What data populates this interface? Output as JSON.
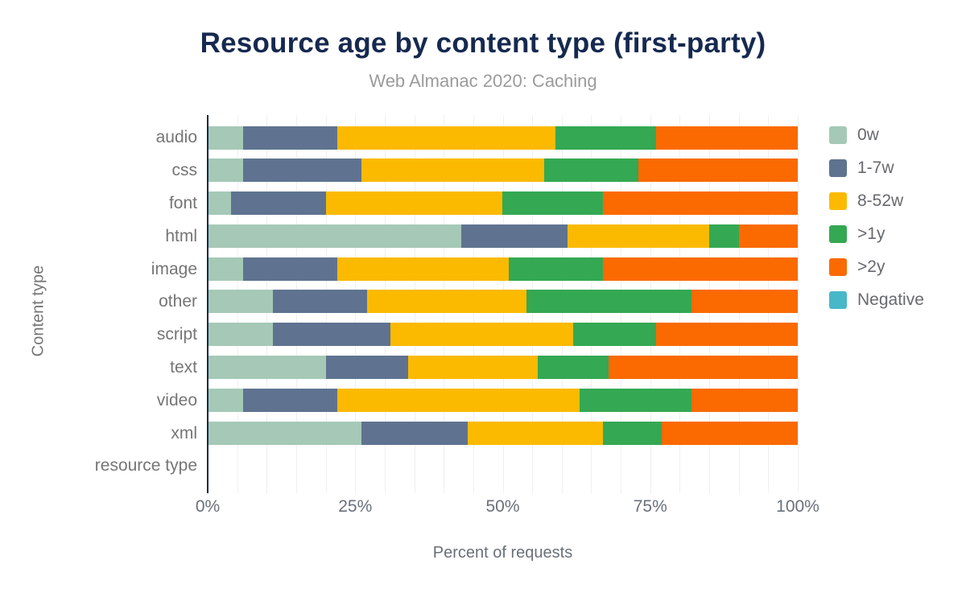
{
  "header": {
    "title": "Resource age by content type (first-party)",
    "subtitle": "Web Almanac 2020: Caching"
  },
  "chart_data": {
    "type": "bar",
    "stacked": true,
    "orientation": "horizontal",
    "title": "Resource age by content type (first-party)",
    "subtitle": "Web Almanac 2020: Caching",
    "xlabel": "Percent of requests",
    "ylabel": "Content type",
    "xlim": [
      0,
      100
    ],
    "x_ticks": [
      {
        "value": 0,
        "label": "0%"
      },
      {
        "value": 25,
        "label": "25%"
      },
      {
        "value": 50,
        "label": "50%"
      },
      {
        "value": 75,
        "label": "75%"
      },
      {
        "value": 100,
        "label": "100%"
      }
    ],
    "grid": "vertical minor gridlines every 5%",
    "legend_position": "right",
    "categories": [
      "audio",
      "css",
      "font",
      "html",
      "image",
      "other",
      "script",
      "text",
      "video",
      "xml",
      "resource type"
    ],
    "series": [
      {
        "name": "0w",
        "color": "#a5c9b6",
        "values": [
          6,
          6,
          4,
          43,
          6,
          11,
          11,
          20,
          6,
          26,
          0
        ]
      },
      {
        "name": "1-7w",
        "color": "#5f7390",
        "values": [
          16,
          20,
          16,
          18,
          16,
          16,
          20,
          14,
          16,
          18,
          0
        ]
      },
      {
        "name": "8-52w",
        "color": "#fbba00",
        "values": [
          37,
          31,
          30,
          24,
          29,
          27,
          31,
          22,
          41,
          23,
          0
        ]
      },
      {
        "name": ">1y",
        "color": "#34a853",
        "values": [
          17,
          16,
          17,
          5,
          16,
          28,
          14,
          12,
          19,
          10,
          0
        ]
      },
      {
        "name": ">2y",
        "color": "#fa6a01",
        "values": [
          24,
          27,
          33,
          10,
          33,
          18,
          24,
          32,
          18,
          23,
          0
        ]
      },
      {
        "name": "Negative",
        "color": "#48b8c8",
        "values": [
          0,
          0,
          0,
          0,
          0,
          0,
          0,
          0,
          0,
          0,
          0
        ]
      }
    ]
  },
  "colors": {
    "title": "#16294f",
    "subtitle": "#9b9b9b",
    "axis_line": "#16294f",
    "gridline": "#f0f0f2",
    "axis_labels": "#757575",
    "tick_labels": "#69707b",
    "legend_text": "#66696e",
    "background": "#ffffff"
  }
}
